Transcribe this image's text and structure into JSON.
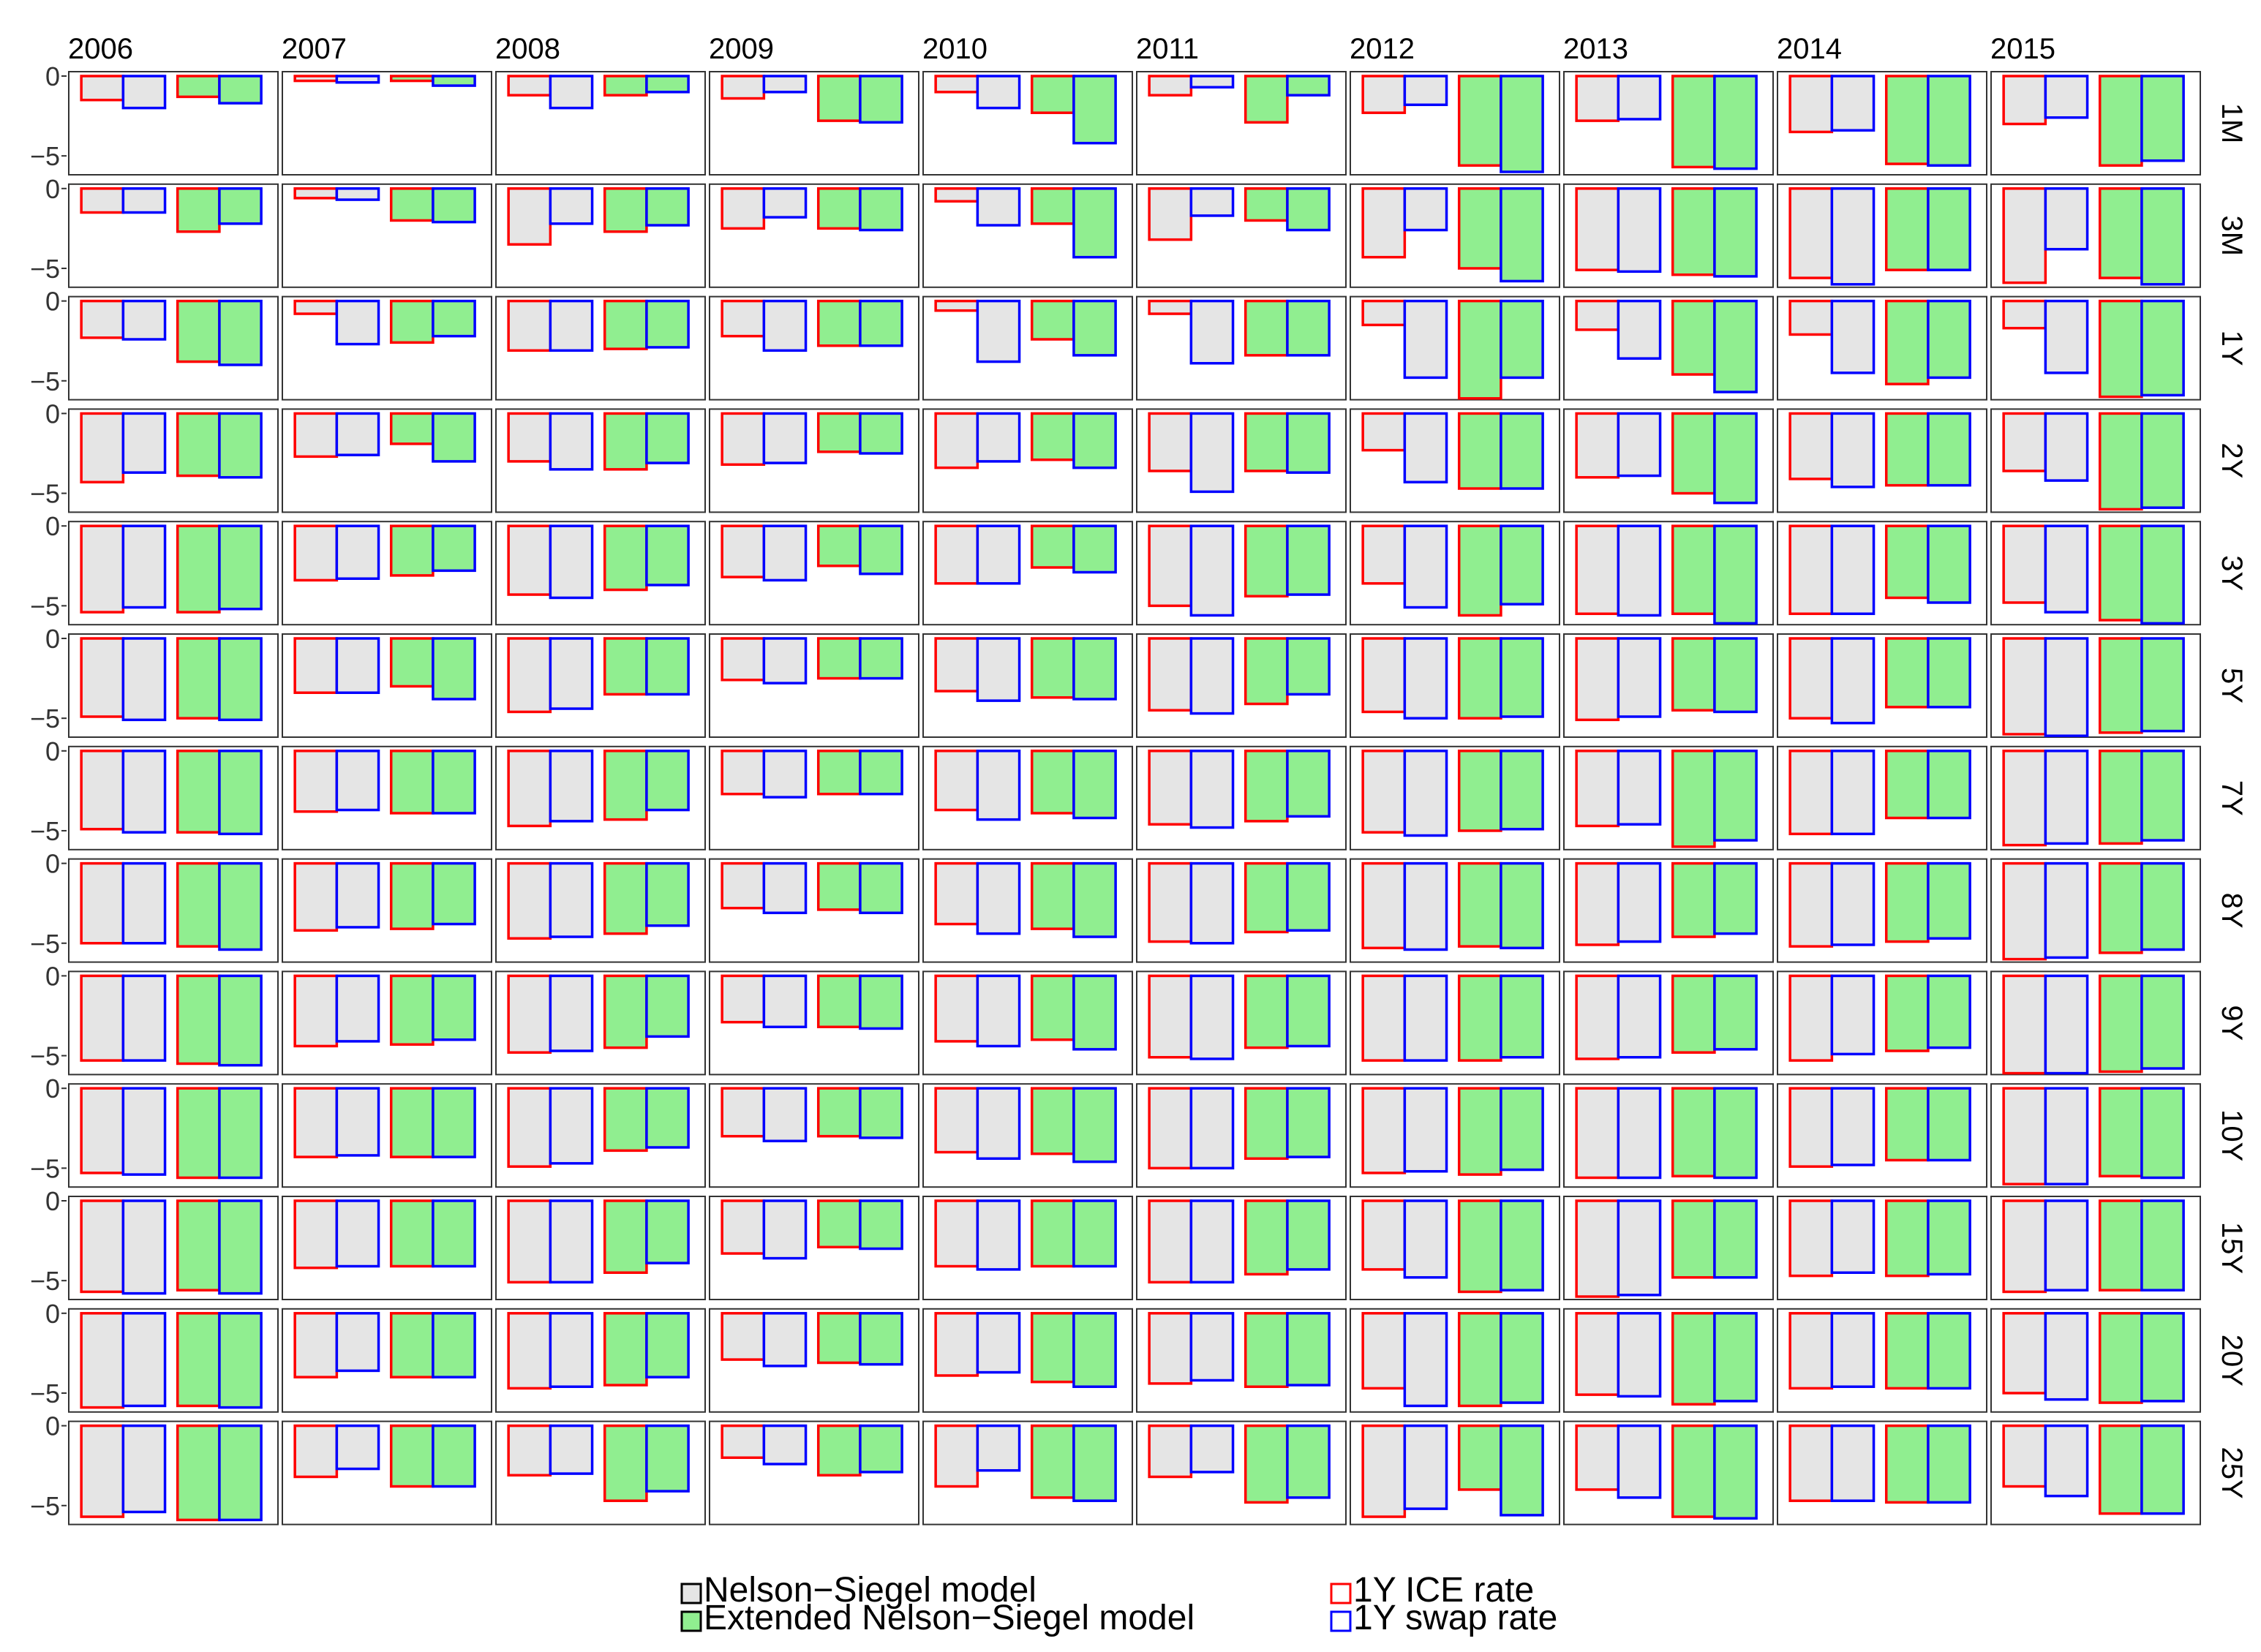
{
  "chart_data": {
    "type": "bar",
    "years": [
      "2006",
      "2007",
      "2008",
      "2009",
      "2010",
      "2011",
      "2012",
      "2013",
      "2014",
      "2015"
    ],
    "maturities": [
      "1M",
      "3M",
      "1Y",
      "2Y",
      "3Y",
      "5Y",
      "7Y",
      "8Y",
      "9Y",
      "10Y",
      "15Y",
      "20Y",
      "25Y"
    ],
    "ylim": [
      -6.0,
      0
    ],
    "yticks": [
      0,
      -5
    ],
    "ytick_labels": [
      "0",
      "−5"
    ],
    "grid": false,
    "legend_position": "bottom",
    "bars_per_panel": [
      {
        "model": "Nelson−Siegel model",
        "rate": "1Y ICE rate"
      },
      {
        "model": "Nelson−Siegel model",
        "rate": "1Y swap rate"
      },
      {
        "model": "Extended Nelson−Siegel model",
        "rate": "1Y ICE rate"
      },
      {
        "model": "Extended Nelson−Siegel model",
        "rate": "1Y swap rate"
      }
    ],
    "legend": {
      "fill": [
        {
          "label": "Nelson−Siegel model",
          "color": "#e5e5e5"
        },
        {
          "label": "Extended Nelson−Siegel model",
          "color": "#90ee90"
        }
      ],
      "outline": [
        {
          "label": "1Y ICE rate",
          "color": "#ff0000"
        },
        {
          "label": "1Y swap rate",
          "color": "#0000ff"
        }
      ]
    },
    "values": {
      "1M": {
        "2006": [
          -1.5,
          -2.0,
          -1.3,
          -1.7
        ],
        "2007": [
          -0.3,
          -0.4,
          -0.3,
          -0.6
        ],
        "2008": [
          -1.2,
          -2.0,
          -1.2,
          -1.0
        ],
        "2009": [
          -1.4,
          -1.0,
          -2.8,
          -2.9
        ],
        "2010": [
          -1.0,
          -2.0,
          -2.3,
          -4.2
        ],
        "2011": [
          -1.2,
          -0.7,
          -2.9,
          -1.2
        ],
        "2012": [
          -2.3,
          -1.8,
          -5.6,
          -6.0
        ],
        "2013": [
          -2.8,
          -2.7,
          -5.7,
          -5.8
        ],
        "2014": [
          -3.5,
          -3.4,
          -5.5,
          -5.6
        ],
        "2015": [
          -3.0,
          -2.6,
          -5.6,
          -5.3
        ]
      },
      "3M": {
        "2006": [
          -1.5,
          -1.5,
          -2.7,
          -2.2
        ],
        "2007": [
          -0.6,
          -0.7,
          -2.0,
          -2.1
        ],
        "2008": [
          -3.5,
          -2.2,
          -2.7,
          -2.3
        ],
        "2009": [
          -2.5,
          -1.8,
          -2.5,
          -2.6
        ],
        "2010": [
          -0.8,
          -2.3,
          -2.2,
          -4.3
        ],
        "2011": [
          -3.2,
          -1.7,
          -2.0,
          -2.6
        ],
        "2012": [
          -4.3,
          -2.6,
          -5.0,
          -5.8
        ],
        "2013": [
          -5.1,
          -5.2,
          -5.4,
          -5.5
        ],
        "2014": [
          -5.6,
          -6.0,
          -5.1,
          -5.1
        ],
        "2015": [
          -5.9,
          -3.8,
          -5.6,
          -6.0
        ]
      },
      "1Y": {
        "2006": [
          -2.3,
          -2.4,
          -3.8,
          -4.0
        ],
        "2007": [
          -0.8,
          -2.7,
          -2.6,
          -2.2
        ],
        "2008": [
          -3.1,
          -3.1,
          -3.0,
          -2.9
        ],
        "2009": [
          -2.2,
          -3.1,
          -2.8,
          -2.8
        ],
        "2010": [
          -0.6,
          -3.8,
          -2.4,
          -3.4
        ],
        "2011": [
          -0.8,
          -3.9,
          -3.4,
          -3.4
        ],
        "2012": [
          -1.5,
          -4.8,
          -6.1,
          -4.8
        ],
        "2013": [
          -1.8,
          -3.6,
          -4.6,
          -5.7
        ],
        "2014": [
          -2.1,
          -4.5,
          -5.2,
          -4.8
        ],
        "2015": [
          -1.7,
          -4.5,
          -6.0,
          -5.9
        ]
      },
      "2Y": {
        "2006": [
          -4.3,
          -3.7,
          -3.9,
          -4.0
        ],
        "2007": [
          -2.7,
          -2.6,
          -1.9,
          -3.0
        ],
        "2008": [
          -3.0,
          -3.5,
          -3.5,
          -3.1
        ],
        "2009": [
          -3.2,
          -3.1,
          -2.4,
          -2.5
        ],
        "2010": [
          -3.4,
          -3.0,
          -2.9,
          -3.4
        ],
        "2011": [
          -3.6,
          -4.9,
          -3.6,
          -3.7
        ],
        "2012": [
          -2.3,
          -4.3,
          -4.7,
          -4.7
        ],
        "2013": [
          -4.0,
          -3.9,
          -5.0,
          -5.6
        ],
        "2014": [
          -4.1,
          -4.6,
          -4.5,
          -4.5
        ],
        "2015": [
          -3.6,
          -4.2,
          -6.0,
          -5.9
        ]
      },
      "3Y": {
        "2006": [
          -5.4,
          -5.1,
          -5.4,
          -5.2
        ],
        "2007": [
          -3.4,
          -3.3,
          -3.1,
          -2.8
        ],
        "2008": [
          -4.3,
          -4.5,
          -4.0,
          -3.7
        ],
        "2009": [
          -3.2,
          -3.4,
          -2.5,
          -3.0
        ],
        "2010": [
          -3.6,
          -3.6,
          -2.6,
          -2.9
        ],
        "2011": [
          -5.0,
          -5.6,
          -4.4,
          -4.3
        ],
        "2012": [
          -3.6,
          -5.1,
          -5.6,
          -4.9
        ],
        "2013": [
          -5.5,
          -5.6,
          -5.5,
          -6.1
        ],
        "2014": [
          -5.5,
          -5.5,
          -4.5,
          -4.8
        ],
        "2015": [
          -4.8,
          -5.4,
          -5.9,
          -6.1
        ]
      },
      "5Y": {
        "2006": [
          -4.9,
          -5.1,
          -5.0,
          -5.1
        ],
        "2007": [
          -3.4,
          -3.4,
          -3.0,
          -3.8
        ],
        "2008": [
          -4.6,
          -4.4,
          -3.5,
          -3.5
        ],
        "2009": [
          -2.6,
          -2.8,
          -2.5,
          -2.5
        ],
        "2010": [
          -3.3,
          -3.9,
          -3.7,
          -3.8
        ],
        "2011": [
          -4.5,
          -4.7,
          -4.1,
          -3.5
        ],
        "2012": [
          -4.6,
          -5.0,
          -5.0,
          -4.9
        ],
        "2013": [
          -5.1,
          -4.9,
          -4.5,
          -4.6
        ],
        "2014": [
          -5.0,
          -5.3,
          -4.3,
          -4.3
        ],
        "2015": [
          -6.0,
          -6.1,
          -5.9,
          -5.8
        ]
      },
      "7Y": {
        "2006": [
          -4.9,
          -5.1,
          -5.1,
          -5.2
        ],
        "2007": [
          -3.8,
          -3.7,
          -3.9,
          -3.9
        ],
        "2008": [
          -4.7,
          -4.4,
          -4.3,
          -3.7
        ],
        "2009": [
          -2.7,
          -2.9,
          -2.7,
          -2.7
        ],
        "2010": [
          -3.7,
          -4.3,
          -3.9,
          -4.2
        ],
        "2011": [
          -4.6,
          -4.8,
          -4.4,
          -4.1
        ],
        "2012": [
          -5.1,
          -5.3,
          -5.0,
          -4.9
        ],
        "2013": [
          -4.7,
          -4.6,
          -6.0,
          -5.6
        ],
        "2014": [
          -5.2,
          -5.2,
          -4.2,
          -4.2
        ],
        "2015": [
          -5.9,
          -5.8,
          -5.8,
          -5.6
        ]
      },
      "8Y": {
        "2006": [
          -5.0,
          -5.0,
          -5.2,
          -5.4
        ],
        "2007": [
          -4.2,
          -4.0,
          -4.1,
          -3.8
        ],
        "2008": [
          -4.7,
          -4.6,
          -4.4,
          -3.9
        ],
        "2009": [
          -2.8,
          -3.1,
          -2.9,
          -3.1
        ],
        "2010": [
          -3.8,
          -4.4,
          -4.1,
          -4.6
        ],
        "2011": [
          -4.9,
          -5.0,
          -4.3,
          -4.2
        ],
        "2012": [
          -5.3,
          -5.4,
          -5.2,
          -5.3
        ],
        "2013": [
          -5.1,
          -4.9,
          -4.6,
          -4.4
        ],
        "2014": [
          -5.2,
          -5.1,
          -4.9,
          -4.7
        ],
        "2015": [
          -6.0,
          -5.9,
          -5.6,
          -5.4
        ]
      },
      "9Y": {
        "2006": [
          -5.3,
          -5.3,
          -5.5,
          -5.6
        ],
        "2007": [
          -4.4,
          -4.1,
          -4.3,
          -4.0
        ],
        "2008": [
          -4.8,
          -4.7,
          -4.5,
          -3.8
        ],
        "2009": [
          -2.9,
          -3.2,
          -3.2,
          -3.3
        ],
        "2010": [
          -4.1,
          -4.4,
          -4.0,
          -4.6
        ],
        "2011": [
          -5.1,
          -5.2,
          -4.5,
          -4.4
        ],
        "2012": [
          -5.3,
          -5.3,
          -5.3,
          -5.1
        ],
        "2013": [
          -5.2,
          -5.1,
          -4.8,
          -4.6
        ],
        "2014": [
          -5.3,
          -4.9,
          -4.7,
          -4.5
        ],
        "2015": [
          -6.1,
          -6.1,
          -6.0,
          -5.8
        ]
      },
      "10Y": {
        "2006": [
          -5.3,
          -5.4,
          -5.6,
          -5.6
        ],
        "2007": [
          -4.3,
          -4.2,
          -4.3,
          -4.3
        ],
        "2008": [
          -4.9,
          -4.7,
          -3.9,
          -3.7
        ],
        "2009": [
          -3.0,
          -3.3,
          -3.0,
          -3.1
        ],
        "2010": [
          -4.0,
          -4.4,
          -4.1,
          -4.6
        ],
        "2011": [
          -5.0,
          -5.0,
          -4.4,
          -4.3
        ],
        "2012": [
          -5.3,
          -5.2,
          -5.4,
          -5.1
        ],
        "2013": [
          -5.6,
          -5.6,
          -5.5,
          -5.6
        ],
        "2014": [
          -4.9,
          -4.8,
          -4.5,
          -4.5
        ],
        "2015": [
          -6.0,
          -6.0,
          -5.5,
          -5.6
        ]
      },
      "15Y": {
        "2006": [
          -5.7,
          -5.8,
          -5.6,
          -5.8
        ],
        "2007": [
          -4.2,
          -4.1,
          -4.1,
          -4.1
        ],
        "2008": [
          -5.1,
          -5.1,
          -4.5,
          -3.9
        ],
        "2009": [
          -3.3,
          -3.6,
          -2.9,
          -3.0
        ],
        "2010": [
          -4.1,
          -4.3,
          -4.1,
          -4.1
        ],
        "2011": [
          -5.1,
          -5.1,
          -4.6,
          -4.3
        ],
        "2012": [
          -4.3,
          -4.8,
          -5.7,
          -5.6
        ],
        "2013": [
          -6.0,
          -5.9,
          -4.8,
          -4.8
        ],
        "2014": [
          -4.7,
          -4.5,
          -4.7,
          -4.6
        ],
        "2015": [
          -5.7,
          -5.6,
          -5.6,
          -5.6
        ]
      },
      "20Y": {
        "2006": [
          -5.9,
          -5.8,
          -5.8,
          -5.9
        ],
        "2007": [
          -4.0,
          -3.6,
          -4.0,
          -4.0
        ],
        "2008": [
          -4.7,
          -4.6,
          -4.5,
          -4.0
        ],
        "2009": [
          -2.9,
          -3.3,
          -3.1,
          -3.2
        ],
        "2010": [
          -3.9,
          -3.7,
          -4.3,
          -4.6
        ],
        "2011": [
          -4.4,
          -4.2,
          -4.6,
          -4.5
        ],
        "2012": [
          -4.7,
          -5.8,
          -5.8,
          -5.6
        ],
        "2013": [
          -5.1,
          -5.2,
          -5.7,
          -5.5
        ],
        "2014": [
          -4.7,
          -4.6,
          -4.7,
          -4.7
        ],
        "2015": [
          -5.0,
          -5.4,
          -5.6,
          -5.5
        ]
      },
      "25Y": {
        "2006": [
          -5.7,
          -5.4,
          -5.9,
          -5.9
        ],
        "2007": [
          -3.2,
          -2.7,
          -3.8,
          -3.8
        ],
        "2008": [
          -3.1,
          -3.0,
          -4.7,
          -4.1
        ],
        "2009": [
          -2.0,
          -2.4,
          -3.1,
          -2.9
        ],
        "2010": [
          -3.8,
          -2.8,
          -4.5,
          -4.7
        ],
        "2011": [
          -3.2,
          -2.9,
          -4.8,
          -4.5
        ],
        "2012": [
          -5.7,
          -5.2,
          -4.0,
          -5.6
        ],
        "2013": [
          -4.0,
          -4.5,
          -5.7,
          -5.8
        ],
        "2014": [
          -4.7,
          -4.7,
          -4.8,
          -4.8
        ],
        "2015": [
          -3.8,
          -4.4,
          -5.5,
          -5.5
        ]
      }
    }
  }
}
